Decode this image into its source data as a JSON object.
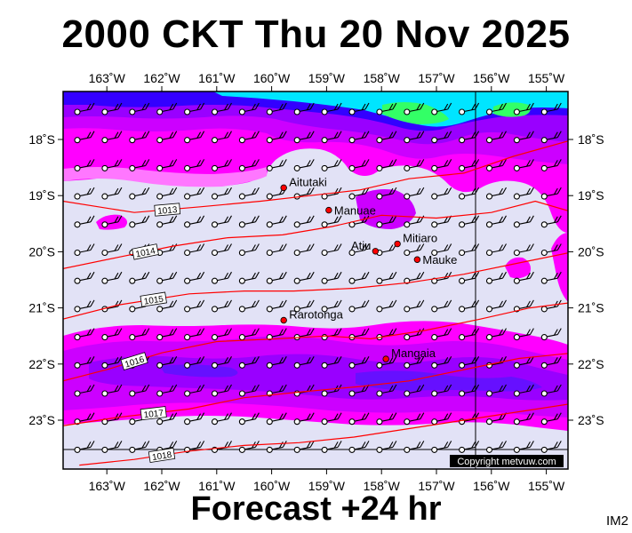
{
  "title": "2000 CKT Thu 20 Nov 2025",
  "footer": "Forecast +24 hr",
  "corner_label": "IM2",
  "copyright": "Copyright metvuw.com",
  "lon_labels": [
    "163˚W",
    "162˚W",
    "161˚W",
    "160˚W",
    "159˚W",
    "158˚W",
    "157˚W",
    "156˚W",
    "155˚W"
  ],
  "lat_labels": [
    "18˚S",
    "19˚S",
    "20˚S",
    "21˚S",
    "22˚S",
    "23˚S"
  ],
  "isobars": [
    {
      "label": "1013",
      "points": [
        [
          -163.8,
          -19.1
        ],
        [
          -162.5,
          -19.3
        ],
        [
          -161.3,
          -19.2
        ],
        [
          -160.2,
          -19.1
        ],
        [
          -159.3,
          -19.0
        ],
        [
          -158.4,
          -18.9
        ],
        [
          -157.5,
          -18.7
        ],
        [
          -156.5,
          -18.6
        ],
        [
          -155.6,
          -18.3
        ],
        [
          -154.5,
          -18.0
        ]
      ]
    },
    {
      "label": "1014",
      "points": [
        [
          -163.8,
          -20.3
        ],
        [
          -162.8,
          -20.1
        ],
        [
          -161.8,
          -19.9
        ],
        [
          -160.8,
          -19.75
        ],
        [
          -159.8,
          -19.7
        ],
        [
          -158.9,
          -19.55
        ],
        [
          -158.0,
          -19.35
        ],
        [
          -157.0,
          -19.4
        ],
        [
          -156.0,
          -19.3
        ],
        [
          -155.2,
          -19.1
        ],
        [
          -154.5,
          -19.3
        ]
      ]
    },
    {
      "label": "1015",
      "points": [
        [
          -163.8,
          -21.2
        ],
        [
          -162.8,
          -20.95
        ],
        [
          -161.5,
          -20.75
        ],
        [
          -160.5,
          -20.7
        ],
        [
          -159.6,
          -20.7
        ],
        [
          -158.5,
          -20.65
        ],
        [
          -157.5,
          -20.55
        ],
        [
          -156.5,
          -20.4
        ],
        [
          -155.5,
          -20.2
        ],
        [
          -154.5,
          -20.0
        ]
      ]
    },
    {
      "label": "1016",
      "points": [
        [
          -163.8,
          -22.3
        ],
        [
          -163.0,
          -22.1
        ],
        [
          -162.0,
          -21.8
        ],
        [
          -161.0,
          -21.6
        ],
        [
          -159.9,
          -21.55
        ],
        [
          -159.0,
          -21.5
        ],
        [
          -158.2,
          -21.55
        ],
        [
          -157.2,
          -21.4
        ],
        [
          -156.2,
          -21.2
        ],
        [
          -155.3,
          -21.0
        ],
        [
          -154.5,
          -20.9
        ]
      ]
    },
    {
      "label": "1017",
      "points": [
        [
          -163.8,
          -23.1
        ],
        [
          -162.8,
          -22.95
        ],
        [
          -161.5,
          -22.8
        ],
        [
          -160.5,
          -22.6
        ],
        [
          -159.5,
          -22.5
        ],
        [
          -158.4,
          -22.4
        ],
        [
          -157.5,
          -22.3
        ],
        [
          -156.5,
          -22.1
        ],
        [
          -155.5,
          -21.9
        ],
        [
          -154.5,
          -21.8
        ]
      ]
    },
    {
      "label": "1018",
      "points": [
        [
          -163.5,
          -23.8
        ],
        [
          -162.5,
          -23.7
        ],
        [
          -161.5,
          -23.55
        ],
        [
          -160.5,
          -23.45
        ],
        [
          -159.5,
          -23.4
        ],
        [
          -158.5,
          -23.3
        ],
        [
          -157.5,
          -23.15
        ],
        [
          -156.5,
          -23.0
        ],
        [
          -155.5,
          -22.85
        ],
        [
          -154.5,
          -22.7
        ]
      ]
    }
  ],
  "places": [
    {
      "name": "Aitutaki",
      "lon": -159.78,
      "lat": -18.86
    },
    {
      "name": "Manuae",
      "lon": -158.96,
      "lat": -19.26
    },
    {
      "name": "Mitiaro",
      "lon": -157.71,
      "lat": -19.86
    },
    {
      "name": "Atiu",
      "lon": -158.11,
      "lat": -19.99
    },
    {
      "name": "Mauke",
      "lon": -157.35,
      "lat": -20.14
    },
    {
      "name": "Rarotonga",
      "lon": -159.78,
      "lat": -21.22
    },
    {
      "name": "Mangaia",
      "lon": -157.92,
      "lat": -21.91
    }
  ],
  "colors": {
    "background": "#e2e2f6",
    "light_magenta": "#ff66ff",
    "magenta": "#ff00ff",
    "violet": "#cc00ff",
    "purple": "#9900ff",
    "blue": "#3300ff",
    "cyan": "#00ffff",
    "green": "#33ff33",
    "isobar": "#ff0000",
    "place_dot": "#ff0000"
  }
}
